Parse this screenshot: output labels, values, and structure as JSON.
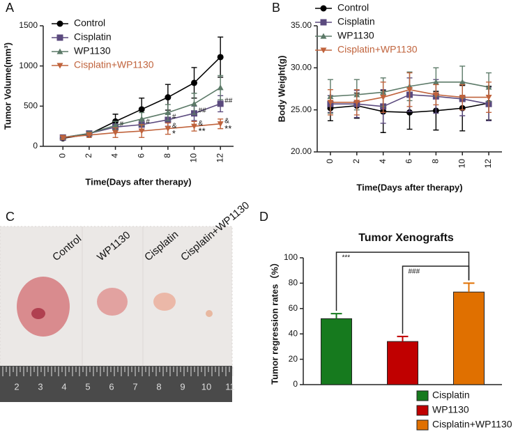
{
  "chart_data": [
    {
      "type": "line",
      "panel": "A",
      "xlabel": "Time(Days after therapy)",
      "ylabel": "Tumor Volume(mm³)",
      "x": [
        0,
        2,
        4,
        6,
        8,
        10,
        12
      ],
      "xlim": [
        -1.5,
        13
      ],
      "xticks": [
        0,
        2,
        4,
        6,
        8,
        10,
        12
      ],
      "ylim": [
        0,
        1500
      ],
      "yticks": [
        0,
        500,
        1000,
        1500
      ],
      "legend": "upper left",
      "series": [
        {
          "name": "Control",
          "color": "#000000",
          "marker": "circle",
          "values": [
            100,
            150,
            310,
            460,
            610,
            790,
            1110
          ],
          "errors": [
            20,
            20,
            90,
            140,
            160,
            190,
            250
          ]
        },
        {
          "name": "Cisplatin",
          "color": "#5b4a7e",
          "marker": "square",
          "values": [
            110,
            160,
            240,
            270,
            330,
            410,
            530
          ],
          "errors": [
            20,
            20,
            40,
            60,
            80,
            90,
            100
          ],
          "annotations": [
            null,
            null,
            "#",
            "#",
            "#",
            "##",
            "##"
          ]
        },
        {
          "name": "WP1130",
          "color": "#5c7a68",
          "marker": "triangle-up",
          "values": [
            110,
            160,
            260,
            340,
            420,
            530,
            730
          ],
          "errors": [
            20,
            20,
            50,
            80,
            100,
            130,
            150
          ]
        },
        {
          "name": "Cisplatin+WP1130",
          "color": "#c0633c",
          "marker": "triangle-down",
          "values": [
            110,
            140,
            170,
            190,
            220,
            250,
            280
          ],
          "errors": [
            20,
            30,
            60,
            80,
            70,
            60,
            60
          ],
          "annotations": [
            null,
            null,
            null,
            null,
            "&",
            "&",
            "&"
          ],
          "annotations_below": [
            null,
            null,
            null,
            null,
            "*",
            "**",
            "**"
          ]
        }
      ]
    },
    {
      "type": "line",
      "panel": "B",
      "xlabel": "Time(Days after therapy)",
      "ylabel": "Body Weight(g)",
      "x": [
        0,
        2,
        4,
        6,
        8,
        10,
        12
      ],
      "xlim": [
        -1,
        13
      ],
      "xticks": [
        0,
        2,
        4,
        6,
        8,
        10,
        12
      ],
      "ylim": [
        20,
        35
      ],
      "yticks": [
        {
          "value": 20,
          "label": "20.00"
        },
        {
          "value": 25,
          "label": "25.00"
        },
        {
          "value": 30,
          "label": "30.00"
        },
        {
          "value": 35,
          "label": "35.00"
        }
      ],
      "legend": "top",
      "series": [
        {
          "name": "Control",
          "color": "#000000",
          "marker": "circle",
          "values": [
            25.2,
            25.5,
            24.8,
            24.7,
            24.9,
            25.2,
            25.8
          ],
          "errors": [
            1.5,
            1.5,
            2.5,
            2.0,
            2.3,
            2.7,
            2.0
          ]
        },
        {
          "name": "Cisplatin",
          "color": "#5b4a7e",
          "marker": "square",
          "values": [
            25.7,
            25.7,
            25.4,
            26.8,
            26.6,
            26.3,
            25.7
          ],
          "errors": [
            1.0,
            1.6,
            2.0,
            2.0,
            2.0,
            2.0,
            2.0
          ]
        },
        {
          "name": "WP1130",
          "color": "#5c7a68",
          "marker": "triangle-up",
          "values": [
            26.6,
            26.8,
            27.1,
            27.8,
            28.3,
            28.3,
            27.7
          ],
          "errors": [
            2.0,
            1.8,
            1.7,
            1.7,
            1.7,
            1.9,
            1.7
          ]
        },
        {
          "name": "Cisplatin+WP1130",
          "color": "#c0633c",
          "marker": "triangle-down",
          "values": [
            25.9,
            25.9,
            26.5,
            27.4,
            26.8,
            26.5,
            26.5
          ],
          "errors": [
            1.5,
            1.5,
            1.8,
            2.0,
            1.2,
            1.5,
            1.8
          ]
        }
      ]
    },
    {
      "type": "bar",
      "panel": "D",
      "title": "Tumor Xenografts",
      "ylabel": "Tumor regression rates（%）",
      "categories": [
        "Cisplatin",
        "WP1130",
        "Cisplatin+WP1130"
      ],
      "values": [
        52,
        34,
        73
      ],
      "errors": [
        4,
        4,
        7
      ],
      "colors": [
        "#167a1e",
        "#c00000",
        "#e07000"
      ],
      "ylim": [
        0,
        100
      ],
      "yticks": [
        0,
        20,
        40,
        60,
        80,
        100
      ],
      "legend": "lower right",
      "comparisons": [
        {
          "from": "Cisplatin",
          "to": "Cisplatin+WP1130",
          "label": "***"
        },
        {
          "from": "WP1130",
          "to": "Cisplatin+WP1130",
          "label": "###"
        }
      ]
    }
  ],
  "photo": {
    "panel": "C",
    "labels": [
      "Control",
      "WP1130",
      "Cisplatin",
      "Cisplatin+WP1130"
    ],
    "ruler_numbers": [
      "2",
      "3",
      "4",
      "5",
      "6",
      "7",
      "8",
      "9",
      "10",
      "11"
    ]
  }
}
